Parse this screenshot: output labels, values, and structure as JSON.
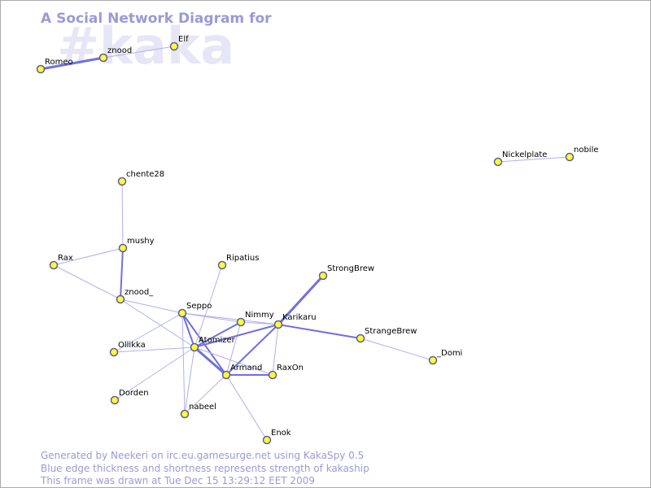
{
  "title": "A Social Network Diagram for",
  "channel": "#kaka",
  "nodes": [
    {
      "label": "Romeo"
    },
    {
      "label": "znood"
    },
    {
      "label": "Elf"
    },
    {
      "label": "Nickelplate"
    },
    {
      "label": "nobile"
    },
    {
      "label": "chente28"
    },
    {
      "label": "mushy"
    },
    {
      "label": "Rax"
    },
    {
      "label": "Ripatius"
    },
    {
      "label": "StrongBrew"
    },
    {
      "label": "znood_"
    },
    {
      "label": "Seppo"
    },
    {
      "label": "Nimmy"
    },
    {
      "label": "Karikaru"
    },
    {
      "label": "StrangeBrew"
    },
    {
      "label": "Ollikka"
    },
    {
      "label": "Atomizer"
    },
    {
      "label": "_Domi"
    },
    {
      "label": "Armand"
    },
    {
      "label": "RaxOn"
    },
    {
      "label": "Dorden"
    },
    {
      "label": "nabeel"
    },
    {
      "label": "Enok"
    }
  ],
  "footer": [
    "Generated by Neekeri on irc.eu.gamesurge.net using KakaSpy 0.5",
    "Blue edge thickness and shortness represents strength of kakaship",
    "This frame was drawn at Tue Dec 15 13:29:12 EET 2009"
  ]
}
